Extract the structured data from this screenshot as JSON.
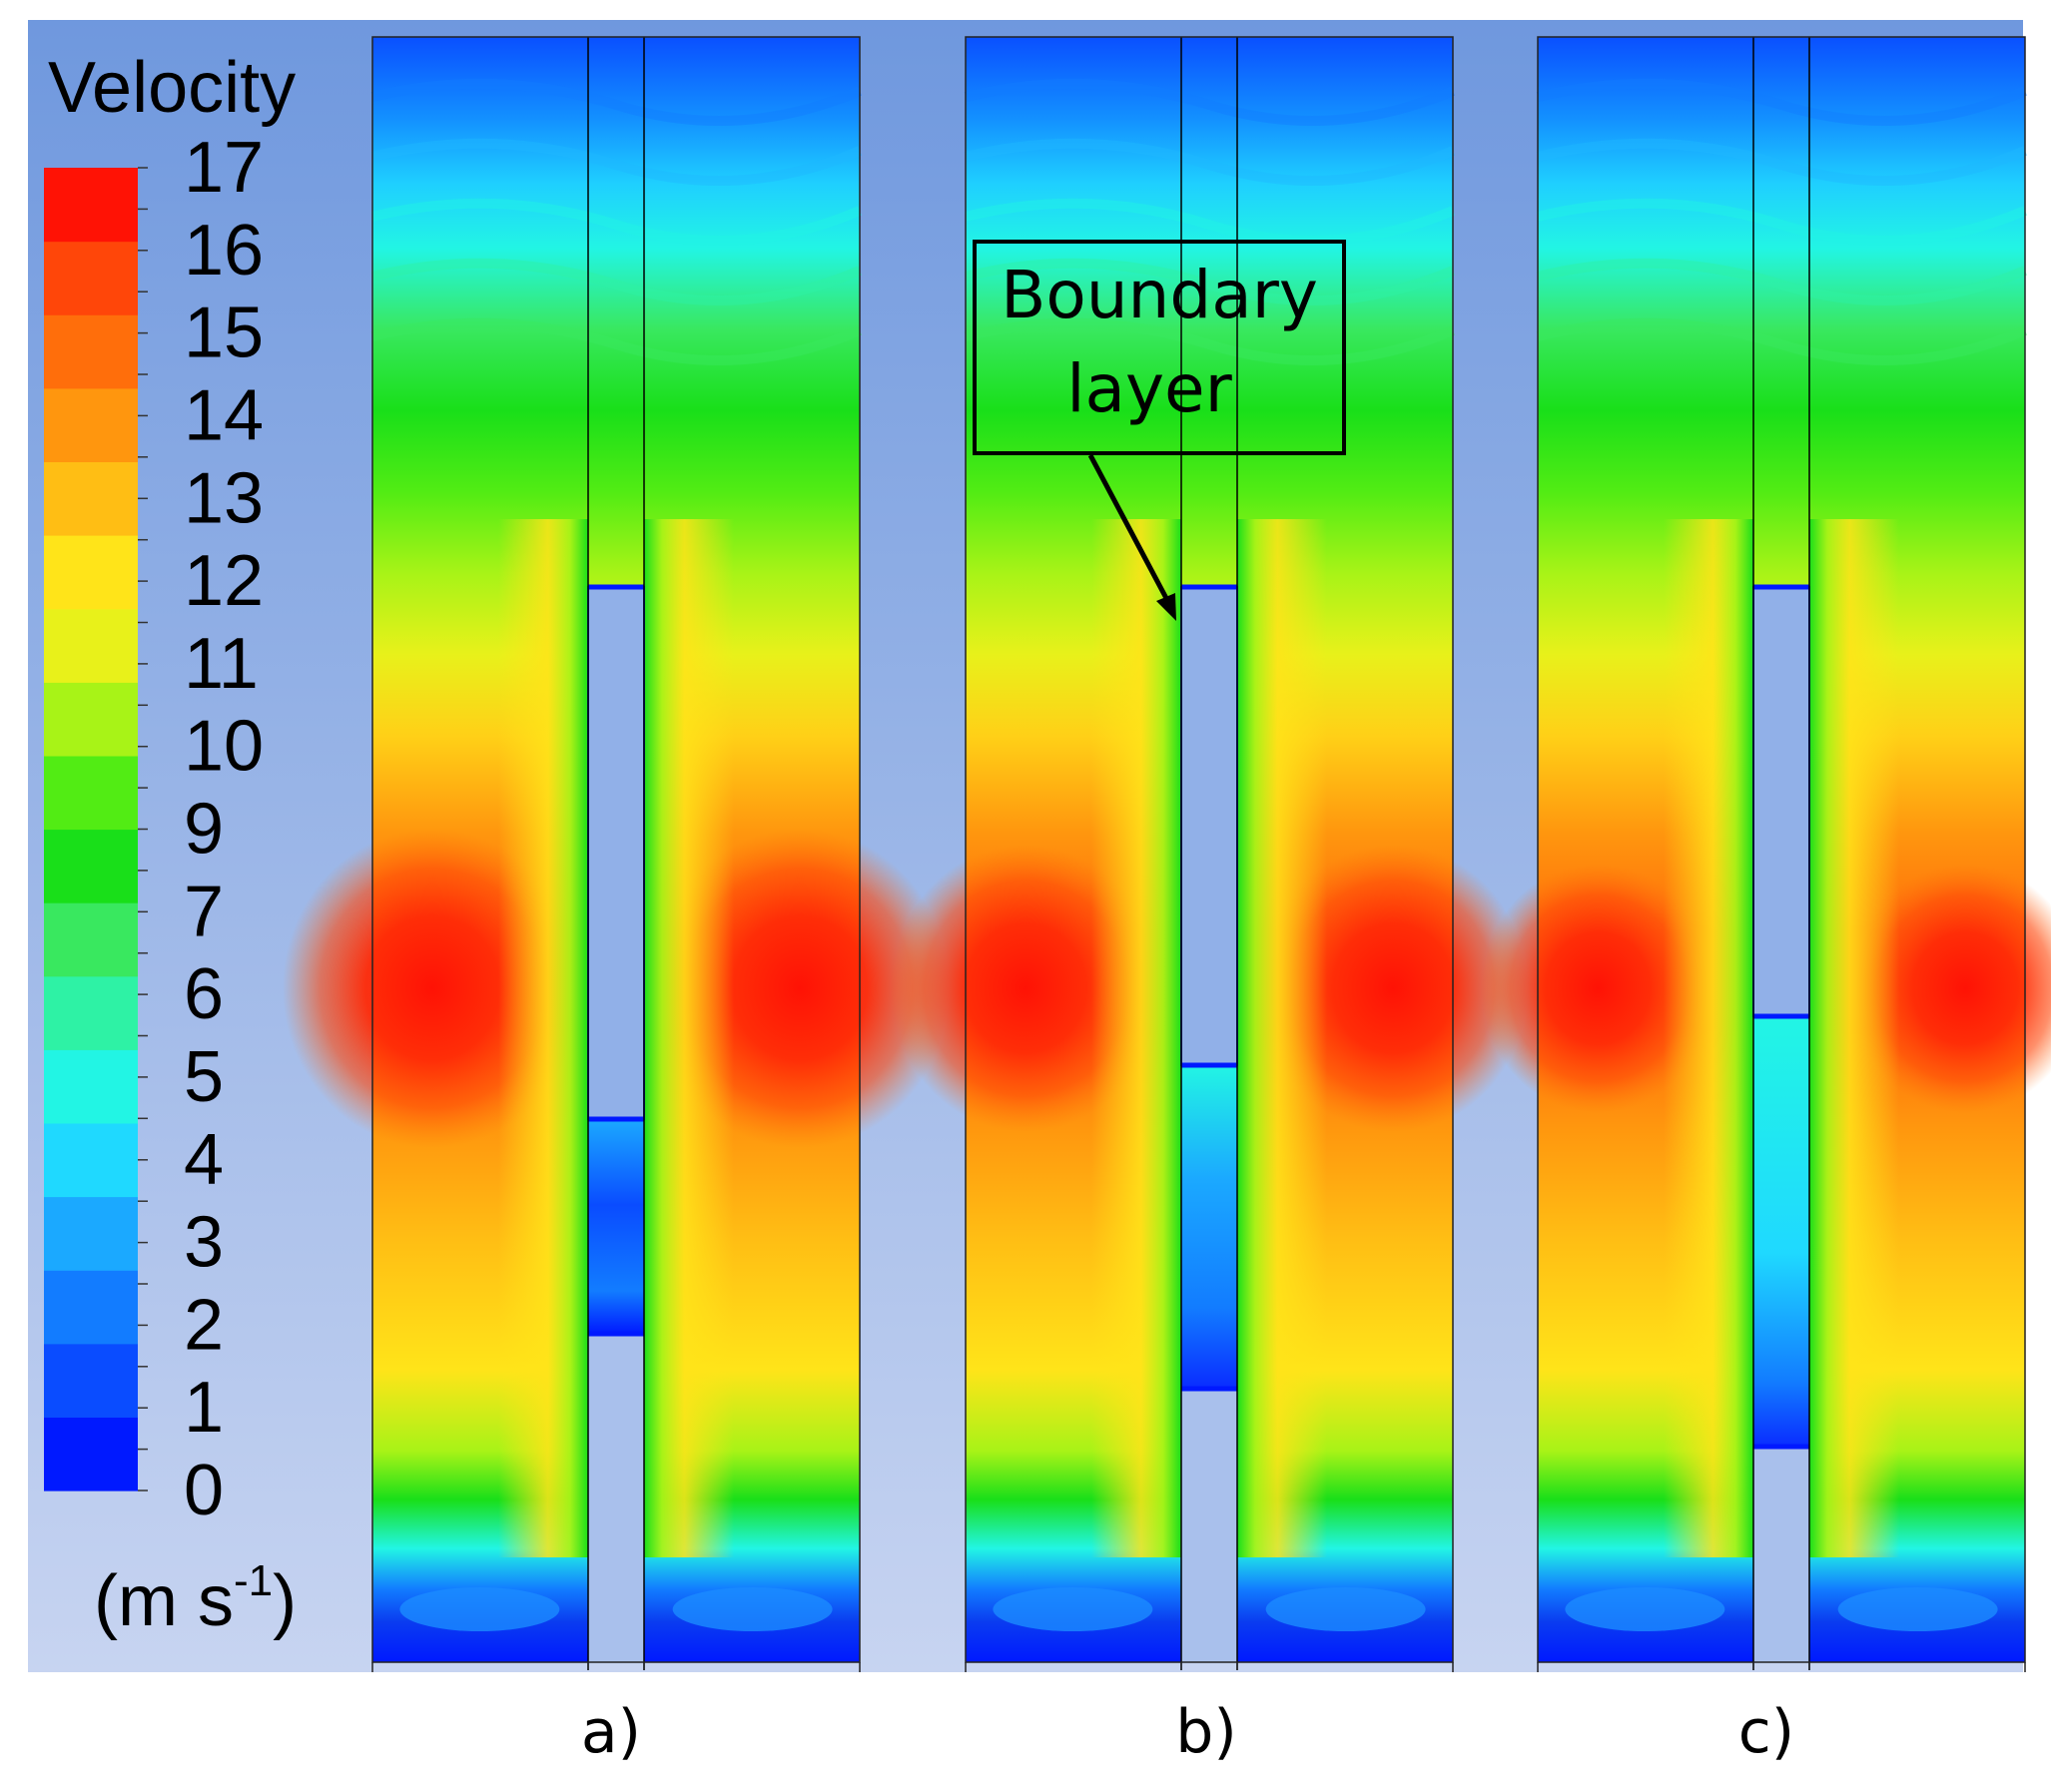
{
  "legend": {
    "title": "Velocity",
    "unit_prefix": "(m s",
    "unit_exp": "-1",
    "unit_suffix": ")",
    "ticks": [
      "17",
      "16",
      "15",
      "14",
      "13",
      "12",
      "11",
      "10",
      "9",
      "7",
      "6",
      "5",
      "4",
      "3",
      "2",
      "1",
      "0"
    ]
  },
  "annotation": {
    "line1": "Boundary",
    "line2": "layer"
  },
  "panels": [
    {
      "label": "a)",
      "plate_top_bottom": 0.337,
      "gap_fill": "low"
    },
    {
      "label": "b)",
      "plate_top_bottom": 0.63,
      "gap_fill": "mid"
    },
    {
      "label": "c)",
      "plate_top_bottom": 0.27,
      "gap_fill": "high"
    }
  ],
  "colors": {
    "background_top": "#6f98de",
    "background_bottom": "#c7d4f1",
    "scale": [
      "#0019ff",
      "#0a4cff",
      "#127cff",
      "#1ba9ff",
      "#1fd9ff",
      "#22f5e4",
      "#2ef2a5",
      "#39e85f",
      "#19df19",
      "#52ec14",
      "#a8f317",
      "#e8f11a",
      "#ffe419",
      "#ffbe14",
      "#ff960e",
      "#ff6e0b",
      "#ff4609",
      "#ff1205"
    ]
  }
}
